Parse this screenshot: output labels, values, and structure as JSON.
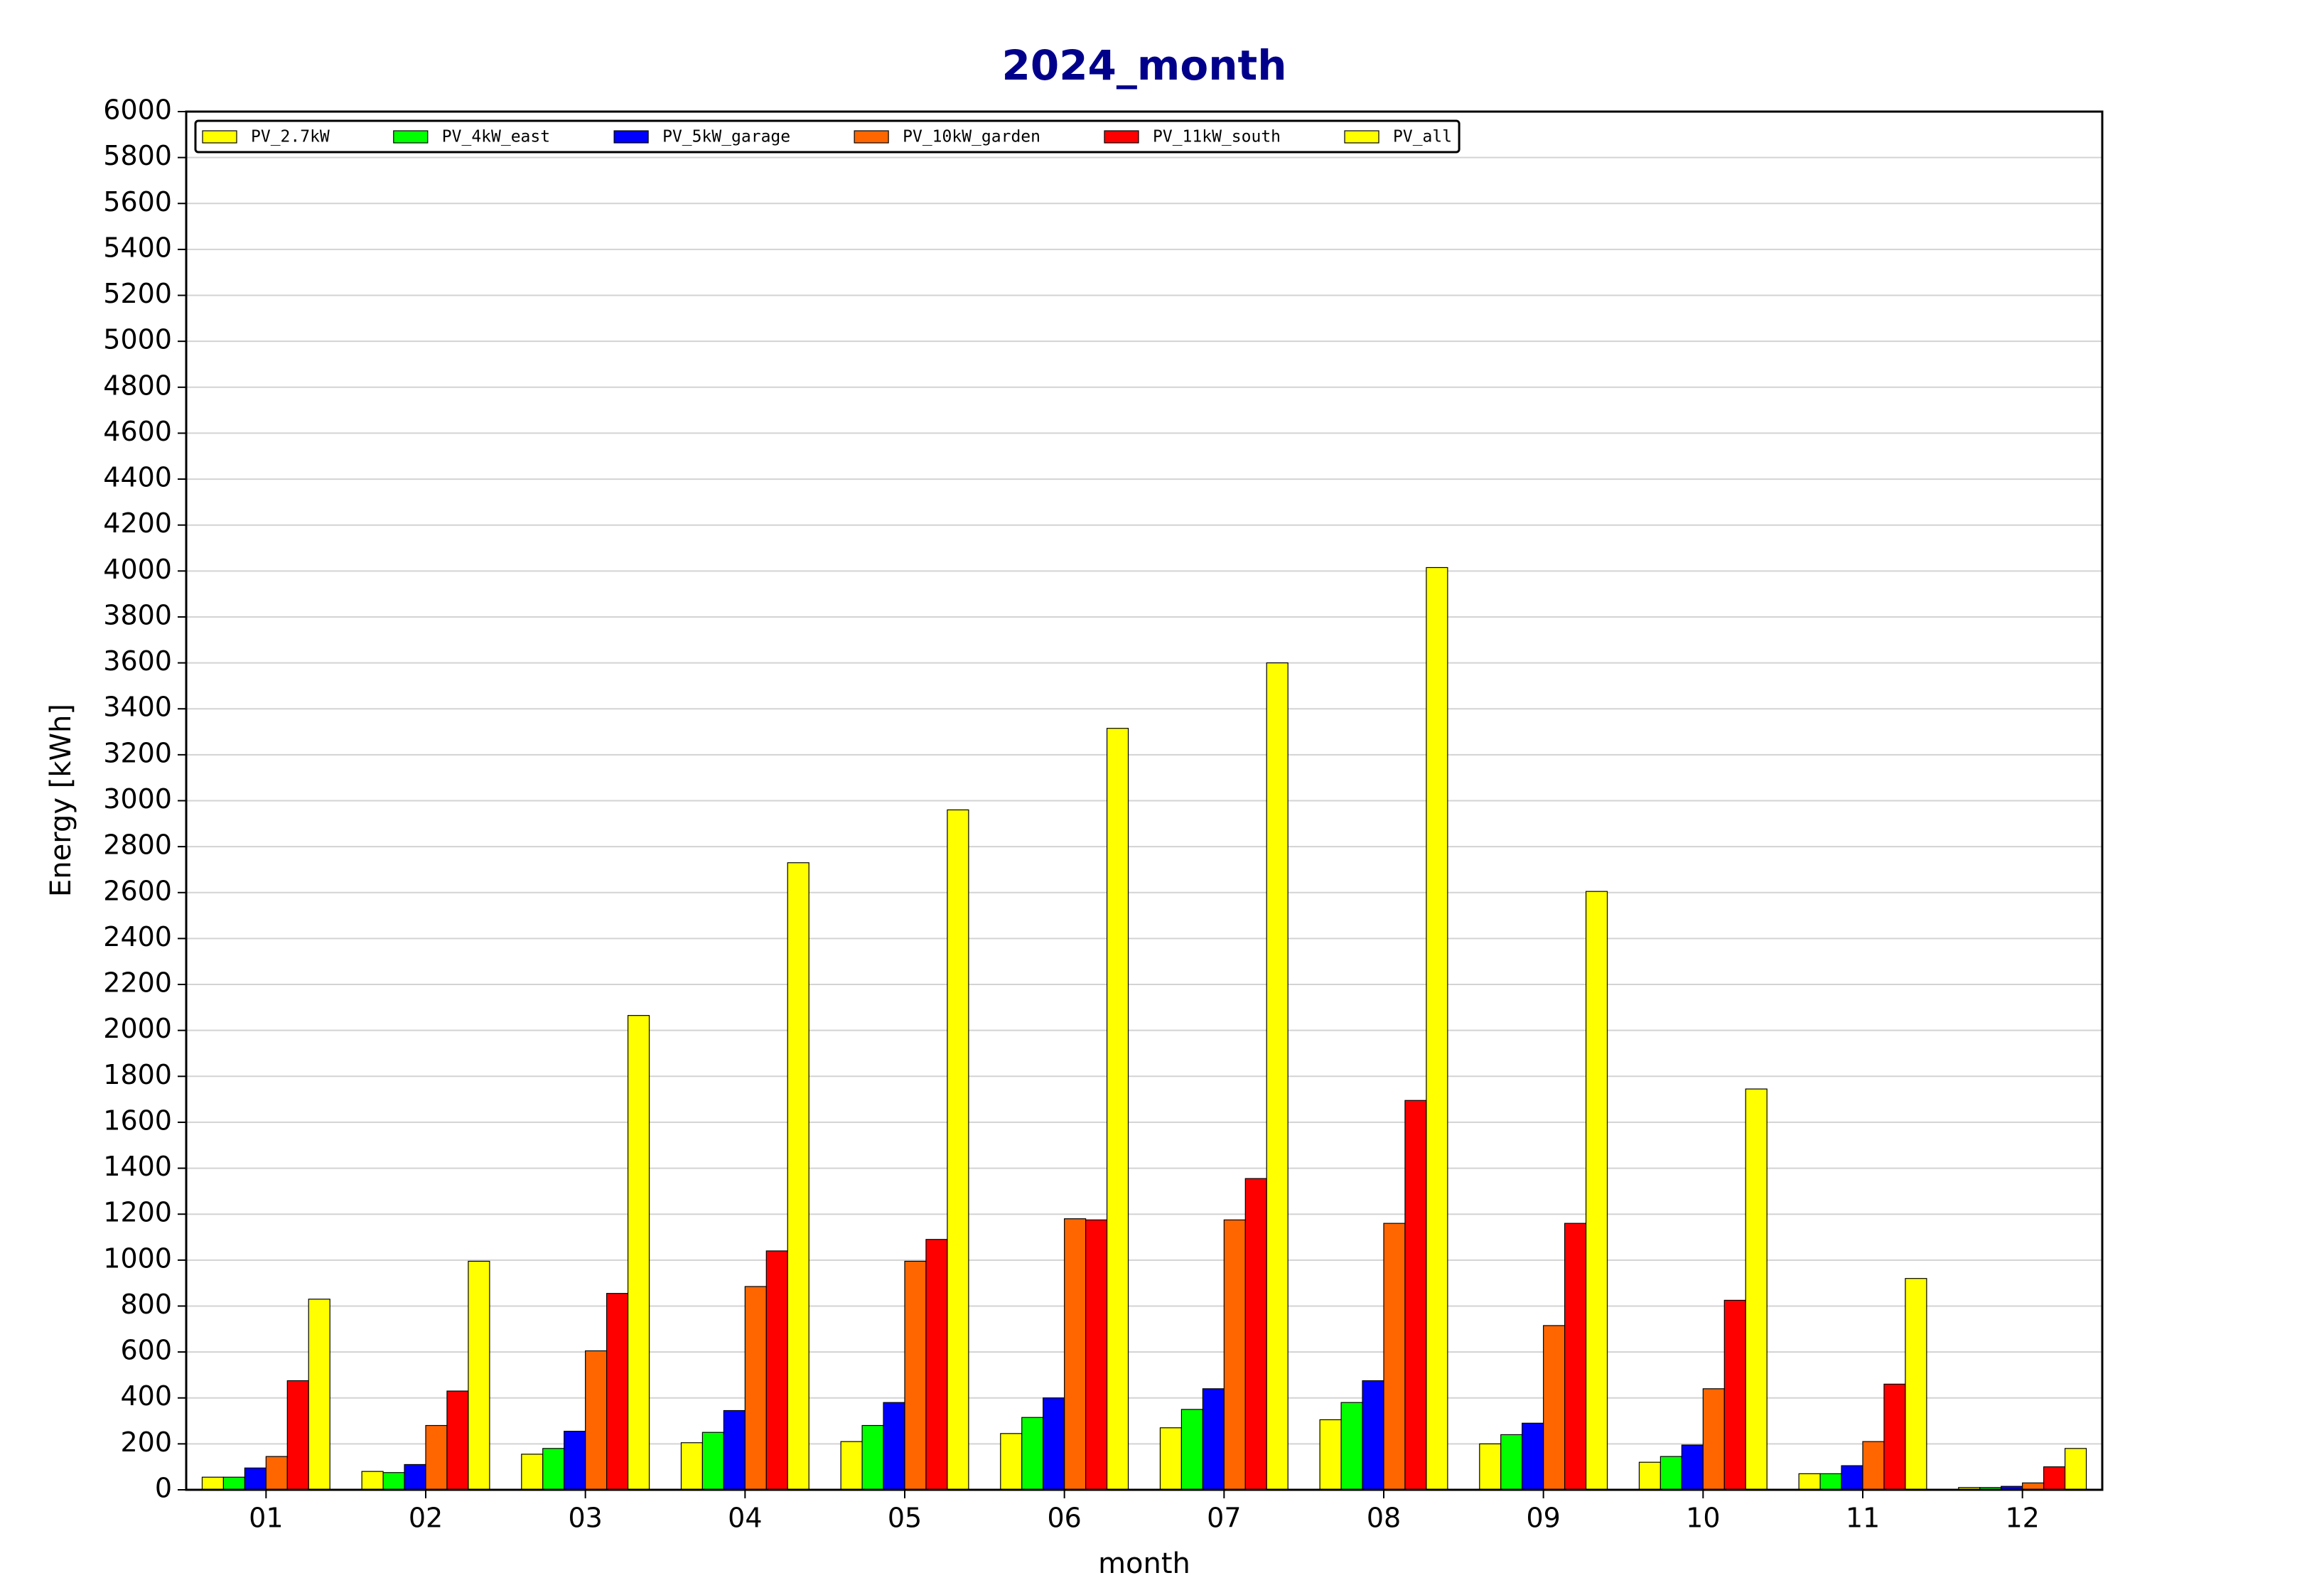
{
  "chart_data": {
    "type": "bar",
    "title": "2024_month",
    "x_label": "month",
    "y_label": "Energy [kWh]",
    "categories": [
      "01",
      "02",
      "03",
      "04",
      "05",
      "06",
      "07",
      "08",
      "09",
      "10",
      "11",
      "12"
    ],
    "series": [
      {
        "name": "PV_2.7kW",
        "color": "#ffff00",
        "values": [
          55,
          80,
          155,
          205,
          210,
          245,
          270,
          305,
          200,
          120,
          70,
          10
        ]
      },
      {
        "name": "PV_4kW_east",
        "color": "#00ff00",
        "values": [
          55,
          75,
          180,
          250,
          280,
          315,
          350,
          380,
          240,
          145,
          70,
          10
        ]
      },
      {
        "name": "PV_5kW_garage",
        "color": "#0000ff",
        "values": [
          95,
          110,
          255,
          345,
          380,
          400,
          440,
          475,
          290,
          195,
          105,
          15
        ]
      },
      {
        "name": "PV_10kW_garden",
        "color": "#ff6600",
        "values": [
          145,
          280,
          605,
          885,
          995,
          1180,
          1175,
          1160,
          715,
          440,
          210,
          30
        ]
      },
      {
        "name": "PV_11kW_south",
        "color": "#ff0000",
        "values": [
          475,
          430,
          855,
          1040,
          1090,
          1175,
          1355,
          1695,
          1160,
          825,
          460,
          100
        ]
      },
      {
        "name": "PV_all",
        "color": "#ffff00",
        "values": [
          830,
          995,
          2065,
          2730,
          2960,
          3315,
          3600,
          4015,
          2605,
          1745,
          920,
          180
        ]
      }
    ],
    "ylim": [
      0,
      6000
    ],
    "yticks": [
      0,
      200,
      400,
      600,
      800,
      1000,
      1200,
      1400,
      1600,
      1800,
      2000,
      2200,
      2400,
      2600,
      2800,
      3000,
      3200,
      3400,
      3600,
      3800,
      4000,
      4200,
      4400,
      4600,
      4800,
      5000,
      5200,
      5400,
      5600,
      5800,
      6000
    ],
    "grid": true,
    "legend": "upper left"
  }
}
